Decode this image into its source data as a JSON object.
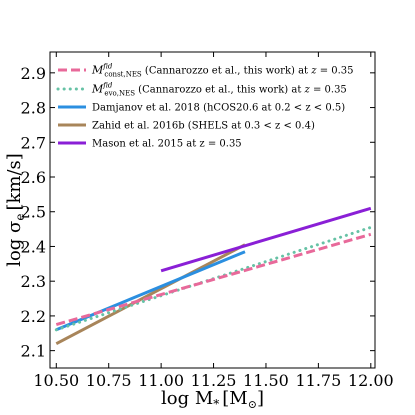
{
  "chart_data": {
    "type": "line",
    "title": "",
    "xlabel": "log M",
    "xlabel_sub": "*",
    "xlabel_unit": "[M",
    "xlabel_unit_sub": "⊙",
    "xlabel_unit_end": "]",
    "ylabel": "log σ",
    "ylabel_sub": "e",
    "ylabel_unit": "[km/s]",
    "xlim": [
      10.47,
      12.02
    ],
    "ylim": [
      2.05,
      2.96
    ],
    "xticks": [
      "10.50",
      "10.75",
      "11.00",
      "11.25",
      "11.50",
      "11.75",
      "12.00"
    ],
    "yticks": [
      "2.1",
      "2.2",
      "2.3",
      "2.4",
      "2.5",
      "2.6",
      "2.7",
      "2.8",
      "2.9"
    ],
    "grid": false,
    "legend_position": "top-left",
    "series": [
      {
        "legend_main": "M",
        "legend_sup": "fid",
        "legend_sub": "const,NES",
        "legend_rest": " (Cannarozzo et al., this work) at ",
        "legend_math": "z",
        "legend_end": " = 0.35",
        "color": "#e8699a",
        "style": "dashed",
        "x": [
          10.5,
          12.0
        ],
        "y": [
          2.175,
          2.435
        ]
      },
      {
        "legend_main": "M",
        "legend_sup": "fid",
        "legend_sub": "evo,NES",
        "legend_rest": " (Cannarozzo et al., this work) at ",
        "legend_math": "z",
        "legend_end": " = 0.35",
        "color": "#66c2a5",
        "style": "dotted",
        "x": [
          10.5,
          12.0
        ],
        "y": [
          2.16,
          2.455
        ]
      },
      {
        "legend_text": "Damjanov et al. 2018 (hCOS20.6 at 0.2 < z < 0.5)",
        "color": "#2b8fe0",
        "style": "solid",
        "x": [
          10.5,
          11.4
        ],
        "y": [
          2.16,
          2.385
        ]
      },
      {
        "legend_text": "Zahid et al. 2016b (SHELS at 0.3 < z < 0.4)",
        "color": "#a8855a",
        "style": "solid",
        "x": [
          10.5,
          11.4
        ],
        "y": [
          2.12,
          2.405
        ]
      },
      {
        "legend_text": "Mason et al. 2015 at z = 0.35",
        "color": "#8a1fd6",
        "style": "solid",
        "x": [
          11.0,
          12.0
        ],
        "y": [
          2.33,
          2.51
        ]
      }
    ]
  }
}
